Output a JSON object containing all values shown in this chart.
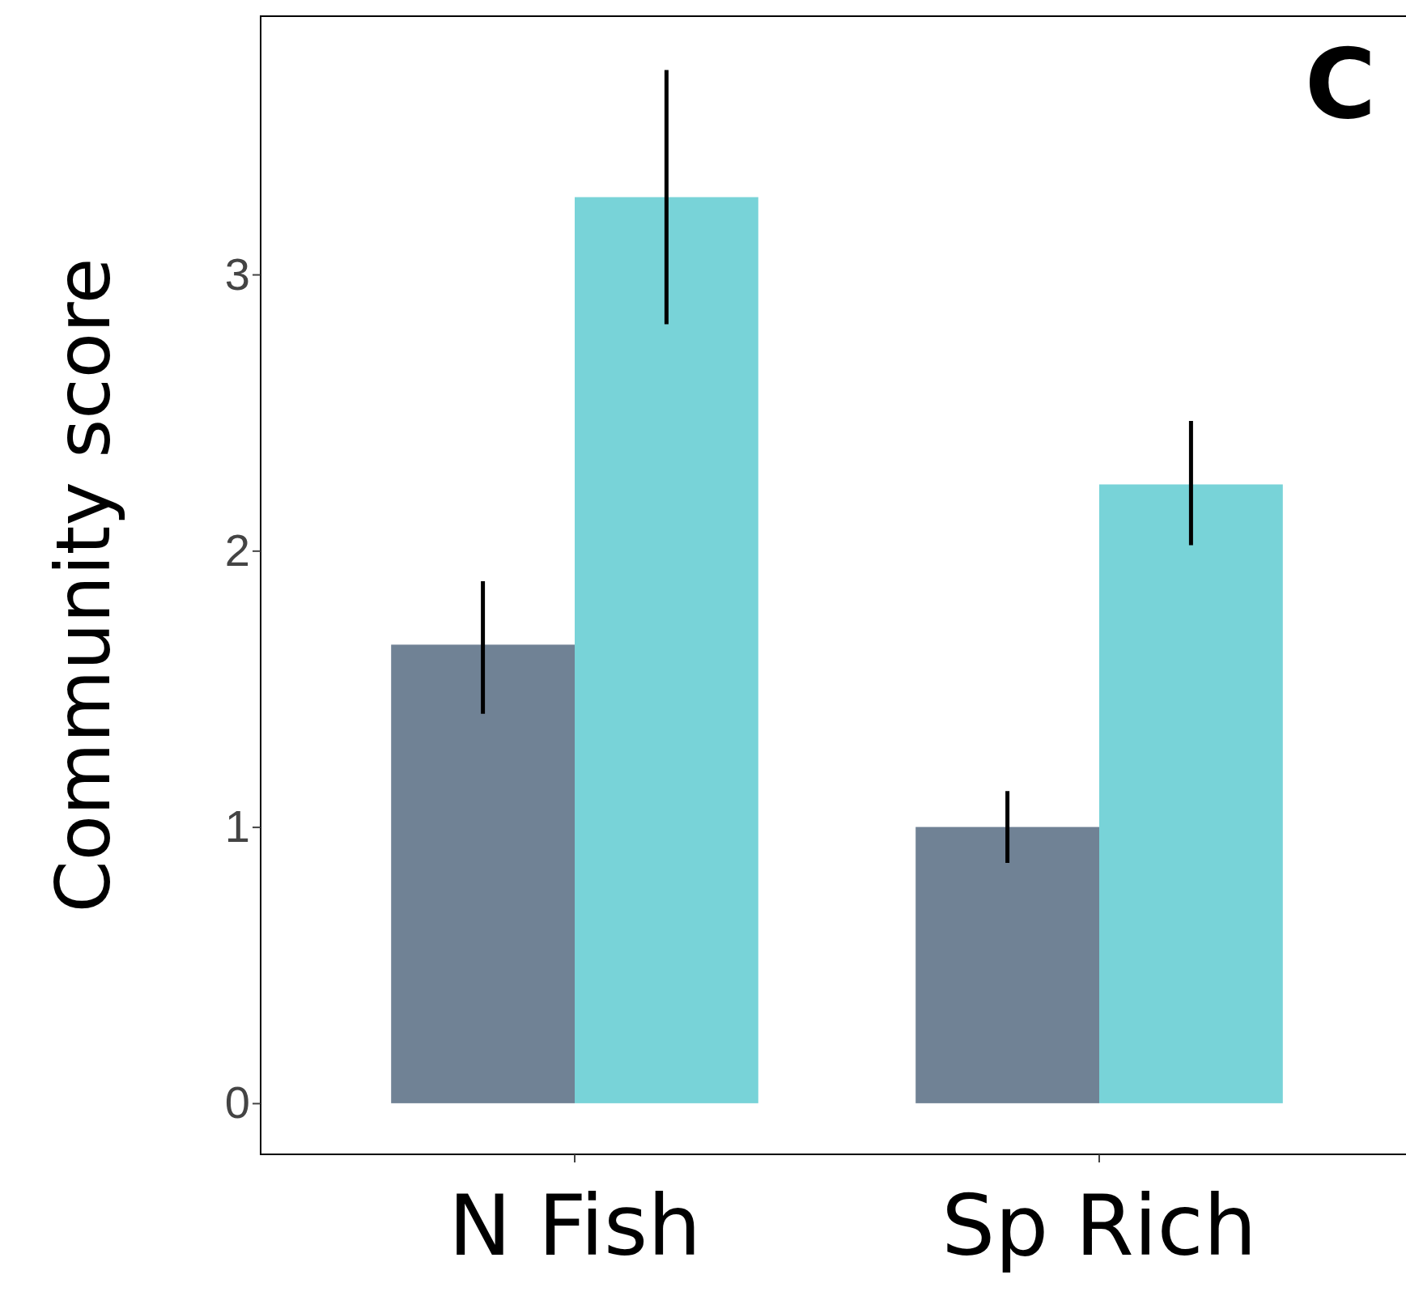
{
  "chart_data": {
    "type": "bar",
    "title": "C",
    "ylabel": "Community score",
    "categories": [
      "N Fish",
      "Sp Rich"
    ],
    "series": [
      {
        "color": "#708295",
        "values": [
          1.66,
          1.0
        ],
        "errors": [
          [
            1.41,
            1.89
          ],
          [
            0.87,
            1.13
          ]
        ]
      },
      {
        "color": "#78d3d8",
        "values": [
          3.28,
          2.24
        ],
        "errors": [
          [
            2.82,
            3.74
          ],
          [
            2.02,
            2.47
          ]
        ]
      }
    ],
    "ylim": [
      -0.185,
      3.935
    ],
    "yticks": [
      0,
      1,
      2,
      3
    ],
    "grid": false
  }
}
